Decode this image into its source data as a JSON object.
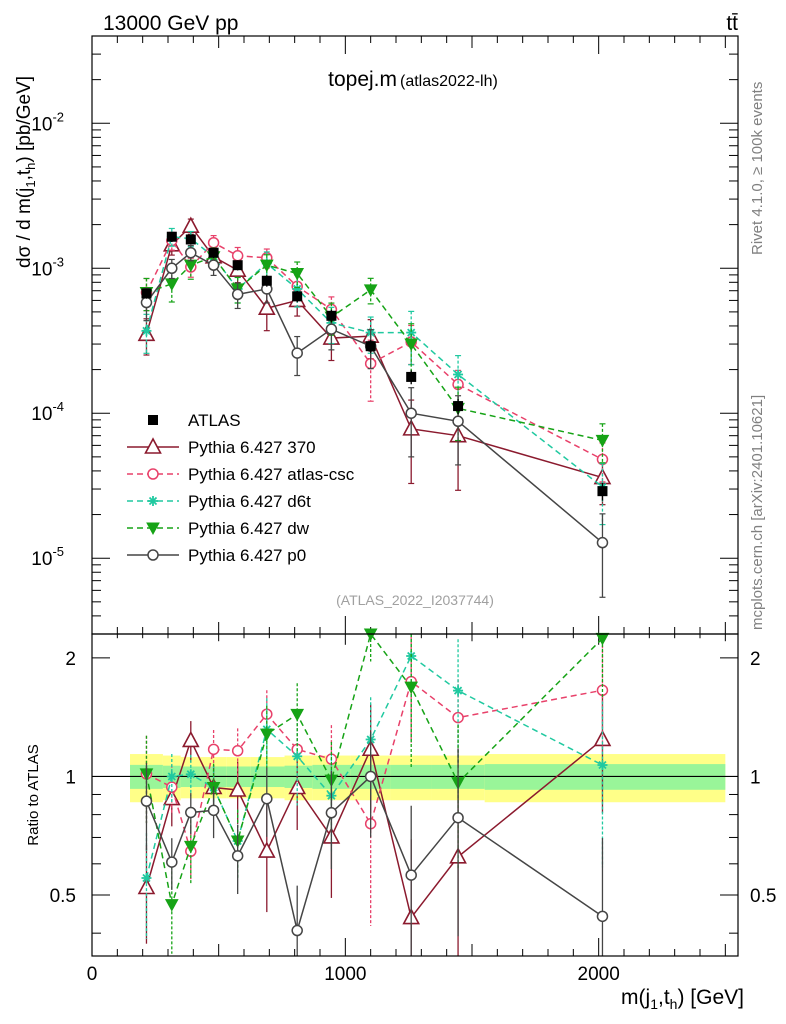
{
  "header": {
    "energy": "13000 GeV pp",
    "process": "tt̄"
  },
  "side_labels": {
    "rivet": "Rivet 4.1.0, ≥ 100k events",
    "source": "mcplots.cern.ch [arXiv:2401.10621]"
  },
  "chart_data": {
    "type": "line",
    "title": "topej.m",
    "subtitle": "(atlas2022-lh)",
    "analysis_id": "(ATLAS_2022_I2037744)",
    "xlabel": "m(j1,th) [GeV]",
    "ylabel": "dσ / d m(j1,th) [pb/GeV]",
    "ratio_ylabel": "Ratio to ATLAS",
    "xlim": [
      0,
      2550
    ],
    "ylim": [
      3e-06,
      0.04
    ],
    "ratio_ylim": [
      0.35,
      2.3
    ],
    "yscale": "log",
    "x_ticks": [
      "0",
      "1000",
      "2000"
    ],
    "y_ticks": [
      "10^-5",
      "10^-4",
      "10^-3",
      "10^-2"
    ],
    "ratio_ticks": [
      "0.5",
      "1",
      "2"
    ],
    "x": [
      215,
      315,
      390,
      480,
      575,
      690,
      810,
      945,
      1100,
      1260,
      1445,
      2015
    ],
    "data": {
      "name": "ATLAS",
      "color": "#000000",
      "values": [
        0.00067,
        0.00165,
        0.00158,
        0.00128,
        0.00105,
        0.00082,
        0.00064,
        0.00047,
        0.00029,
        0.000178,
        0.000112,
        2.9e-05
      ],
      "rel_errors": [
        0.08,
        0.08,
        0.08,
        0.08,
        0.08,
        0.09,
        0.09,
        0.1,
        0.1,
        0.11,
        0.12,
        0.14
      ]
    },
    "series": [
      {
        "name": "Pythia 6.427 370",
        "color": "#8b1a2e",
        "style": "solid",
        "marker": "triangle-open",
        "values": [
          0.00035,
          0.00145,
          0.00195,
          0.0012,
          0.00097,
          0.00053,
          0.0006,
          0.00033,
          0.00034,
          7.8e-05,
          7e-05,
          3.6e-05
        ],
        "rel_errors": [
          0.28,
          0.15,
          0.12,
          0.14,
          0.18,
          0.3,
          0.22,
          0.3,
          0.3,
          0.58,
          0.58,
          0.35
        ]
      },
      {
        "name": "Pythia 6.427 atlas-csc",
        "color": "#e8416a",
        "style": "dashed",
        "marker": "circle-open",
        "values": [
          0.00068,
          0.00155,
          0.00102,
          0.0015,
          0.00122,
          0.00118,
          0.00075,
          0.00052,
          0.00022,
          0.00031,
          0.000158,
          4.8e-05
        ],
        "rel_errors": [
          0.25,
          0.14,
          0.15,
          0.12,
          0.14,
          0.15,
          0.2,
          0.22,
          0.45,
          0.3,
          0.25,
          0.3
        ]
      },
      {
        "name": "Pythia 6.427 d6t",
        "color": "#20c9a0",
        "style": "dashed",
        "marker": "star",
        "values": [
          0.00037,
          0.00165,
          0.0016,
          0.0012,
          0.00072,
          0.00108,
          0.00072,
          0.00042,
          0.00036,
          0.00036,
          0.000185,
          3.1e-05
        ],
        "rel_errors": [
          0.3,
          0.14,
          0.12,
          0.14,
          0.2,
          0.2,
          0.25,
          0.28,
          0.28,
          0.4,
          0.35,
          0.45
        ]
      },
      {
        "name": "Pythia 6.427 dw",
        "color": "#16a316",
        "style": "dashed",
        "marker": "triangle-down-filled",
        "values": [
          0.00068,
          0.00078,
          0.00105,
          0.0012,
          0.00072,
          0.00105,
          0.00092,
          0.00046,
          0.00071,
          0.0003,
          0.000108,
          6.5e-05
        ],
        "rel_errors": [
          0.25,
          0.25,
          0.2,
          0.15,
          0.2,
          0.18,
          0.2,
          0.25,
          0.2,
          0.38,
          0.4,
          0.3
        ]
      },
      {
        "name": "Pythia 6.427 p0",
        "color": "#454545",
        "style": "solid",
        "marker": "circle-open",
        "values": [
          0.00058,
          0.001,
          0.00128,
          0.00105,
          0.00066,
          0.00072,
          0.00026,
          0.00038,
          0.00029,
          0.0001,
          8.8e-05,
          1.28e-05
        ],
        "rel_errors": [
          0.25,
          0.15,
          0.12,
          0.15,
          0.2,
          0.2,
          0.3,
          0.28,
          0.3,
          0.5,
          0.5,
          0.58
        ]
      }
    ],
    "bands": {
      "outer_color": "#ffff88",
      "inner_color": "#99f599",
      "edges": [
        150,
        280,
        350,
        430,
        530,
        625,
        760,
        870,
        1020,
        1180,
        1340,
        1550,
        2500
      ],
      "outer": [
        0.14,
        0.13,
        0.12,
        0.12,
        0.12,
        0.12,
        0.13,
        0.13,
        0.13,
        0.13,
        0.13,
        0.14
      ],
      "inner": [
        0.07,
        0.065,
        0.06,
        0.06,
        0.06,
        0.06,
        0.065,
        0.07,
        0.07,
        0.07,
        0.07,
        0.075
      ]
    }
  }
}
